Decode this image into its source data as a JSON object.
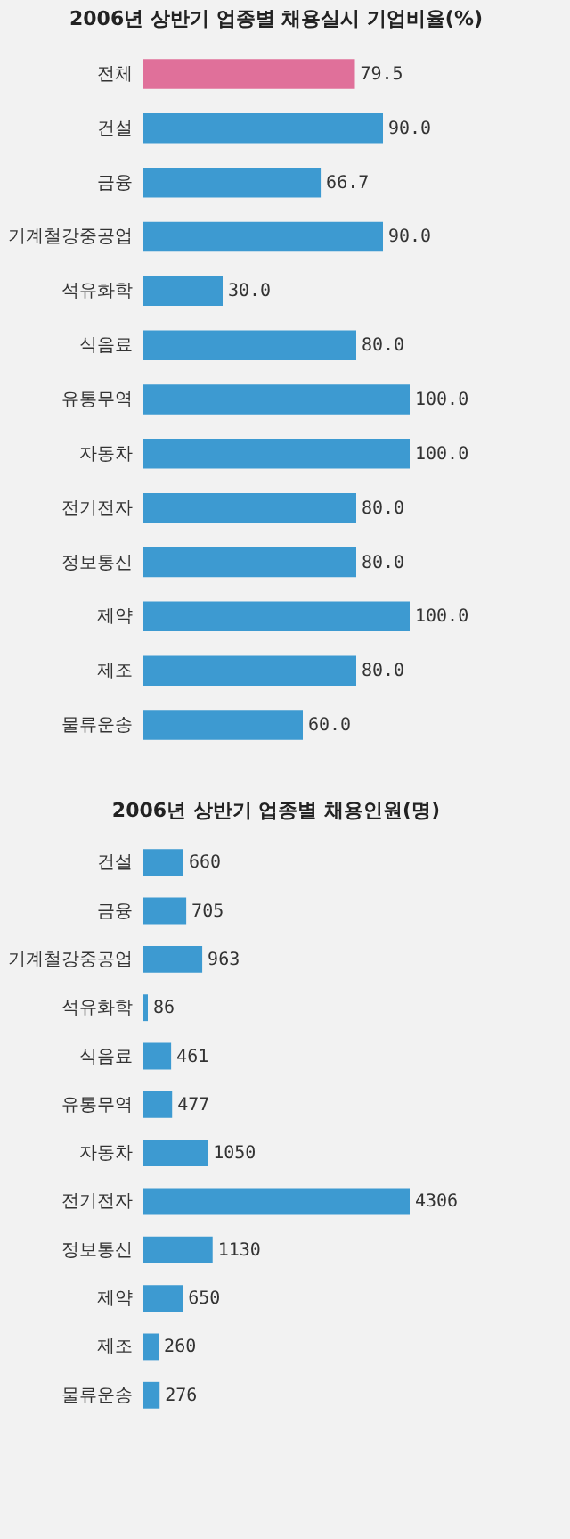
{
  "chart_data": [
    {
      "type": "bar",
      "orientation": "horizontal",
      "title": "2006년 상반기 업종별 채용실시 기업비율(%)",
      "categories": [
        "전체",
        "건설",
        "금융",
        "기계철강중공업",
        "석유화학",
        "식음료",
        "유통무역",
        "자동차",
        "전기전자",
        "정보통신",
        "제약",
        "제조",
        "물류운송"
      ],
      "values": [
        79.5,
        90.0,
        66.7,
        90.0,
        30.0,
        80.0,
        100.0,
        100.0,
        80.0,
        80.0,
        100.0,
        80.0,
        60.0
      ],
      "value_labels": [
        "79.5",
        "90.0",
        "66.7",
        "90.0",
        "30.0",
        "80.0",
        "100.0",
        "100.0",
        "80.0",
        "80.0",
        "100.0",
        "80.0",
        "60.0"
      ],
      "colors": [
        "#e0709a",
        "#3d9ad1",
        "#3d9ad1",
        "#3d9ad1",
        "#3d9ad1",
        "#3d9ad1",
        "#3d9ad1",
        "#3d9ad1",
        "#3d9ad1",
        "#3d9ad1",
        "#3d9ad1",
        "#3d9ad1",
        "#3d9ad1"
      ]
    },
    {
      "type": "bar",
      "orientation": "horizontal",
      "title": "2006년 상반기 업종별 채용인원(명)",
      "categories": [
        "건설",
        "금융",
        "기계철강중공업",
        "석유화학",
        "식음료",
        "유통무역",
        "자동차",
        "전기전자",
        "정보통신",
        "제약",
        "제조",
        "물류운송"
      ],
      "values": [
        660,
        705,
        963,
        86,
        461,
        477,
        1050,
        4306,
        1130,
        650,
        260,
        276
      ],
      "data_labels": true,
      "color": "#3d9ad1"
    }
  ]
}
